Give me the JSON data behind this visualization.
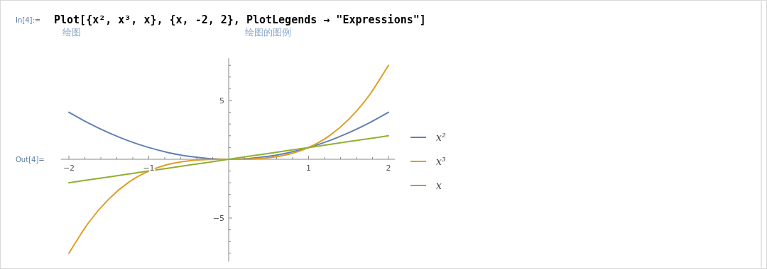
{
  "chart_data": {
    "type": "line",
    "annotations": [
      "In[4]:=",
      "Plot[{x², x³, x}, {x, -2, 2}, PlotLegends → \"Expressions\"]",
      "绘图",
      "绘图的图例",
      "Out[4]="
    ],
    "x": [
      -2,
      -1.75,
      -1.5,
      -1.25,
      -1,
      -0.75,
      -0.5,
      -0.25,
      0,
      0.25,
      0.5,
      0.75,
      1,
      1.25,
      1.5,
      1.75,
      2
    ],
    "series": [
      {
        "name": "x²",
        "color": "#5e81b5",
        "values": [
          4,
          3.06,
          2.25,
          1.56,
          1,
          0.56,
          0.25,
          0.06,
          0,
          0.06,
          0.25,
          0.56,
          1,
          1.56,
          2.25,
          3.06,
          4
        ]
      },
      {
        "name": "x³",
        "color": "#e19c24",
        "values": [
          -8,
          -5.36,
          -3.38,
          -1.95,
          -1,
          -0.42,
          -0.13,
          -0.02,
          0,
          0.02,
          0.13,
          0.42,
          1,
          1.95,
          3.38,
          5.36,
          8
        ]
      },
      {
        "name": "x",
        "color": "#8fb032",
        "values": [
          -2,
          -1.75,
          -1.5,
          -1.25,
          -1,
          -0.75,
          -0.5,
          -0.25,
          0,
          0.25,
          0.5,
          0.75,
          1,
          1.25,
          1.5,
          1.75,
          2
        ]
      }
    ],
    "xlim": [
      -2.1,
      2.08
    ],
    "ylim": [
      -8.7,
      8.6
    ],
    "xticks": [
      -2,
      {
        "value": -1.8,
        "label": null
      },
      {
        "value": -1.6,
        "label": null
      },
      {
        "value": -1.4,
        "label": null
      },
      {
        "value": -1.2,
        "label": null
      },
      -1,
      {
        "value": -0.8,
        "label": null
      },
      {
        "value": -0.6,
        "label": null
      },
      {
        "value": -0.4,
        "label": null
      },
      {
        "value": -0.2,
        "label": null
      },
      {
        "value": 0.2,
        "label": null
      },
      {
        "value": 0.4,
        "label": null
      },
      {
        "value": 0.6,
        "label": null
      },
      {
        "value": 0.8,
        "label": null
      },
      1,
      {
        "value": 1.2,
        "label": null
      },
      {
        "value": 1.4,
        "label": null
      },
      {
        "value": 1.6,
        "label": null
      },
      {
        "value": 1.8,
        "label": null
      },
      2
    ],
    "yticks": [
      {
        "value": -8,
        "label": null
      },
      {
        "value": -7,
        "label": null
      },
      {
        "value": -6,
        "label": null
      },
      {
        "value": -5,
        "label": "−5"
      },
      {
        "value": -4,
        "label": null
      },
      {
        "value": -3,
        "label": null
      },
      {
        "value": -2,
        "label": null
      },
      {
        "value": -1,
        "label": null
      },
      {
        "value": 1,
        "label": null
      },
      {
        "value": 2,
        "label": null
      },
      {
        "value": 3,
        "label": null
      },
      {
        "value": 4,
        "label": null
      },
      5,
      {
        "value": 6,
        "label": null
      },
      {
        "value": 7,
        "label": null
      },
      {
        "value": 8,
        "label": null
      }
    ],
    "legend": "right",
    "marker": "none",
    "line_style": "solid"
  }
}
